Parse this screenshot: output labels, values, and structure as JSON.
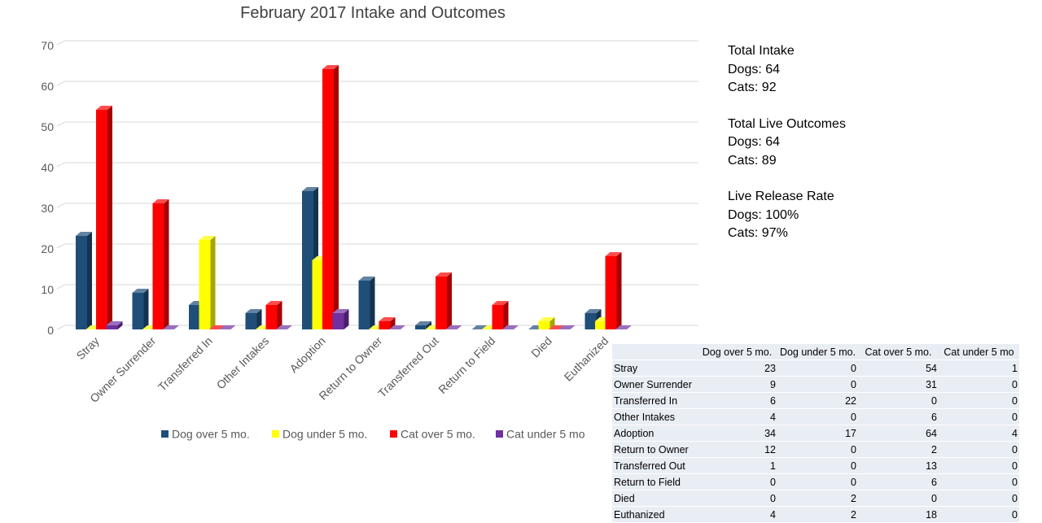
{
  "chart_data": {
    "type": "bar",
    "title": "February 2017 Intake and Outcomes",
    "categories": [
      "Stray",
      "Owner Surrender",
      "Transferred In",
      "Other Intakes",
      "Adoption",
      "Return to Owner",
      "Transferred Out",
      "Return to Field",
      "Died",
      "Euthanized"
    ],
    "series": [
      {
        "name": "Dog over 5 mo.",
        "color": "#1f4e79",
        "values": [
          23,
          9,
          6,
          4,
          34,
          12,
          1,
          0,
          0,
          4
        ]
      },
      {
        "name": "Dog under 5 mo.",
        "color": "#ffff00",
        "values": [
          0,
          0,
          22,
          0,
          17,
          0,
          0,
          0,
          2,
          2
        ]
      },
      {
        "name": "Cat over 5 mo.",
        "color": "#ff0000",
        "values": [
          54,
          31,
          0,
          6,
          64,
          2,
          13,
          6,
          0,
          18
        ]
      },
      {
        "name": "Cat under 5 mo",
        "color": "#7030a0",
        "values": [
          1,
          0,
          0,
          0,
          4,
          0,
          0,
          0,
          0,
          0
        ]
      }
    ],
    "ylim": [
      0,
      70
    ],
    "yticks": [
      0,
      10,
      20,
      30,
      40,
      50,
      60,
      70
    ],
    "grid": true,
    "legend": "bottom",
    "style": "3d-clustered-column"
  },
  "summary": [
    {
      "heading": "Total Intake",
      "dogs": "Dogs: 64",
      "cats": "Cats: 92"
    },
    {
      "heading": "Total Live Outcomes",
      "dogs": "Dogs: 64",
      "cats": "Cats: 89"
    },
    {
      "heading": "Live Release Rate",
      "dogs": "Dogs: 100%",
      "cats": "Cats: 97%"
    }
  ],
  "table": {
    "headers": [
      "",
      "Dog over 5 mo.",
      "Dog under 5 mo.",
      "Cat over 5 mo.",
      "Cat under 5 mo"
    ],
    "rows": [
      [
        "Stray",
        "23",
        "0",
        "54",
        "1"
      ],
      [
        "Owner Surrender",
        "9",
        "0",
        "31",
        "0"
      ],
      [
        "Transferred In",
        "6",
        "22",
        "0",
        "0"
      ],
      [
        "Other Intakes",
        "4",
        "0",
        "6",
        "0"
      ],
      [
        "Adoption",
        "34",
        "17",
        "64",
        "4"
      ],
      [
        "Return to Owner",
        "12",
        "0",
        "2",
        "0"
      ],
      [
        "Transferred Out",
        "1",
        "0",
        "13",
        "0"
      ],
      [
        "Return to Field",
        "0",
        "0",
        "6",
        "0"
      ],
      [
        "Died",
        "0",
        "2",
        "0",
        "0"
      ],
      [
        "Euthanized",
        "4",
        "2",
        "18",
        "0"
      ]
    ]
  }
}
